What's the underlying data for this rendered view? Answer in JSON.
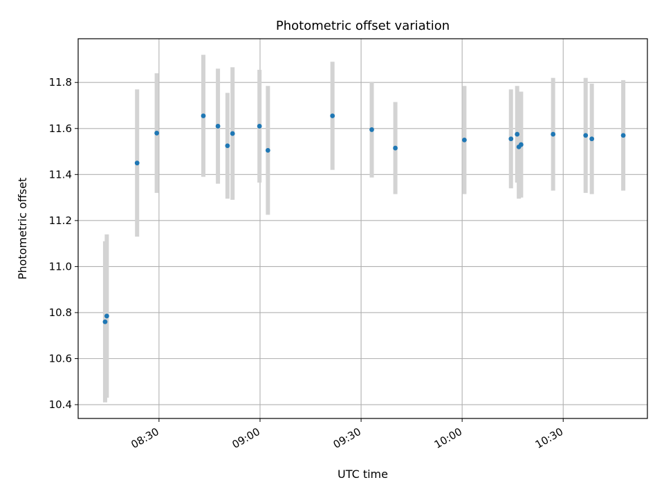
{
  "chart_data": {
    "type": "scatter",
    "title": "Photometric offset variation",
    "xlabel": "UTC time",
    "ylabel": "Photometric offset",
    "x_axis": {
      "kind": "time",
      "range_minutes": [
        486,
        655
      ],
      "ticks": [
        {
          "minute": 510,
          "label": "08:30"
        },
        {
          "minute": 540,
          "label": "09:00"
        },
        {
          "minute": 570,
          "label": "09:30"
        },
        {
          "minute": 600,
          "label": "10:00"
        },
        {
          "minute": 630,
          "label": "10:30"
        }
      ]
    },
    "ylim": [
      10.34,
      11.99
    ],
    "yticks": [
      10.4,
      10.6,
      10.8,
      11.0,
      11.2,
      11.4,
      11.6,
      11.8
    ],
    "grid": true,
    "marker_color": "#1f77b4",
    "errorbar_color": "#d3d3d3",
    "points": [
      {
        "time": "08:14:00",
        "y": 10.76,
        "err": 0.35
      },
      {
        "time": "08:14:30",
        "y": 10.785,
        "err": 0.355
      },
      {
        "time": "08:23:30",
        "y": 11.45,
        "err": 0.32
      },
      {
        "time": "08:29:20",
        "y": 11.58,
        "err": 0.26
      },
      {
        "time": "08:43:10",
        "y": 11.655,
        "err": 0.265
      },
      {
        "time": "08:47:30",
        "y": 11.61,
        "err": 0.25
      },
      {
        "time": "08:50:20",
        "y": 11.525,
        "err": 0.23
      },
      {
        "time": "08:51:50",
        "y": 11.578,
        "err": 0.288
      },
      {
        "time": "08:59:50",
        "y": 11.61,
        "err": 0.245
      },
      {
        "time": "09:02:20",
        "y": 11.505,
        "err": 0.28
      },
      {
        "time": "09:21:30",
        "y": 11.655,
        "err": 0.235
      },
      {
        "time": "09:33:10",
        "y": 11.595,
        "err": 0.208
      },
      {
        "time": "09:40:10",
        "y": 11.515,
        "err": 0.2
      },
      {
        "time": "10:00:40",
        "y": 11.55,
        "err": 0.235
      },
      {
        "time": "10:14:30",
        "y": 11.555,
        "err": 0.215
      },
      {
        "time": "10:16:20",
        "y": 11.575,
        "err": 0.21
      },
      {
        "time": "10:16:50",
        "y": 11.52,
        "err": 0.225
      },
      {
        "time": "10:17:30",
        "y": 11.53,
        "err": 0.23
      },
      {
        "time": "10:27:00",
        "y": 11.575,
        "err": 0.245
      },
      {
        "time": "10:36:40",
        "y": 11.57,
        "err": 0.25
      },
      {
        "time": "10:38:30",
        "y": 11.555,
        "err": 0.24
      },
      {
        "time": "10:47:50",
        "y": 11.57,
        "err": 0.24
      }
    ]
  }
}
